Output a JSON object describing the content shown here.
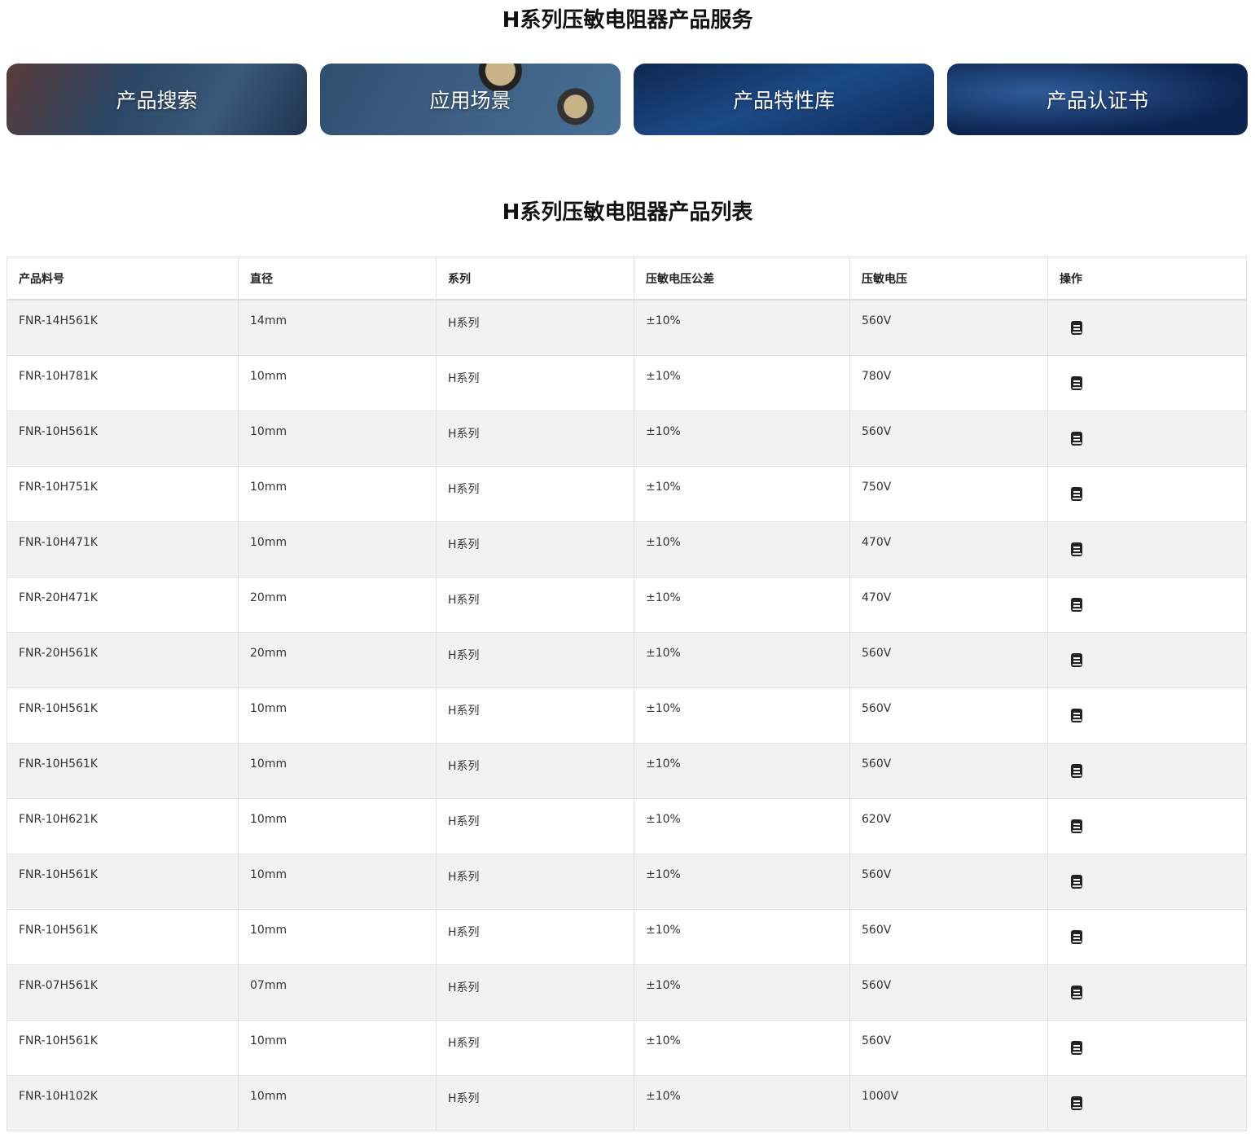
{
  "services": {
    "title": "H系列压敏电阻器产品服务",
    "cards": [
      "产品搜索",
      "应用场景",
      "产品特性库",
      "产品认证书"
    ]
  },
  "list": {
    "title": "H系列压敏电阻器产品列表",
    "headers": [
      "产品料号",
      "直径",
      "系列",
      "压敏电压公差",
      "压敏电压",
      "操作"
    ],
    "action_icon": "book-icon",
    "rows": [
      [
        "FNR-14H561K",
        "14mm",
        "H系列",
        "±10%",
        "560V"
      ],
      [
        "FNR-10H781K",
        "10mm",
        "H系列",
        "±10%",
        "780V"
      ],
      [
        "FNR-10H561K",
        "10mm",
        "H系列",
        "±10%",
        "560V"
      ],
      [
        "FNR-10H751K",
        "10mm",
        "H系列",
        "±10%",
        "750V"
      ],
      [
        "FNR-10H471K",
        "10mm",
        "H系列",
        "±10%",
        "470V"
      ],
      [
        "FNR-20H471K",
        "20mm",
        "H系列",
        "±10%",
        "470V"
      ],
      [
        "FNR-20H561K",
        "20mm",
        "H系列",
        "±10%",
        "560V"
      ],
      [
        "FNR-10H561K",
        "10mm",
        "H系列",
        "±10%",
        "560V"
      ],
      [
        "FNR-10H561K",
        "10mm",
        "H系列",
        "±10%",
        "560V"
      ],
      [
        "FNR-10H621K",
        "10mm",
        "H系列",
        "±10%",
        "620V"
      ],
      [
        "FNR-10H561K",
        "10mm",
        "H系列",
        "±10%",
        "560V"
      ],
      [
        "FNR-10H561K",
        "10mm",
        "H系列",
        "±10%",
        "560V"
      ],
      [
        "FNR-07H561K",
        "07mm",
        "H系列",
        "±10%",
        "560V"
      ],
      [
        "FNR-10H561K",
        "10mm",
        "H系列",
        "±10%",
        "560V"
      ],
      [
        "FNR-10H102K",
        "10mm",
        "H系列",
        "±10%",
        "1000V"
      ]
    ]
  }
}
